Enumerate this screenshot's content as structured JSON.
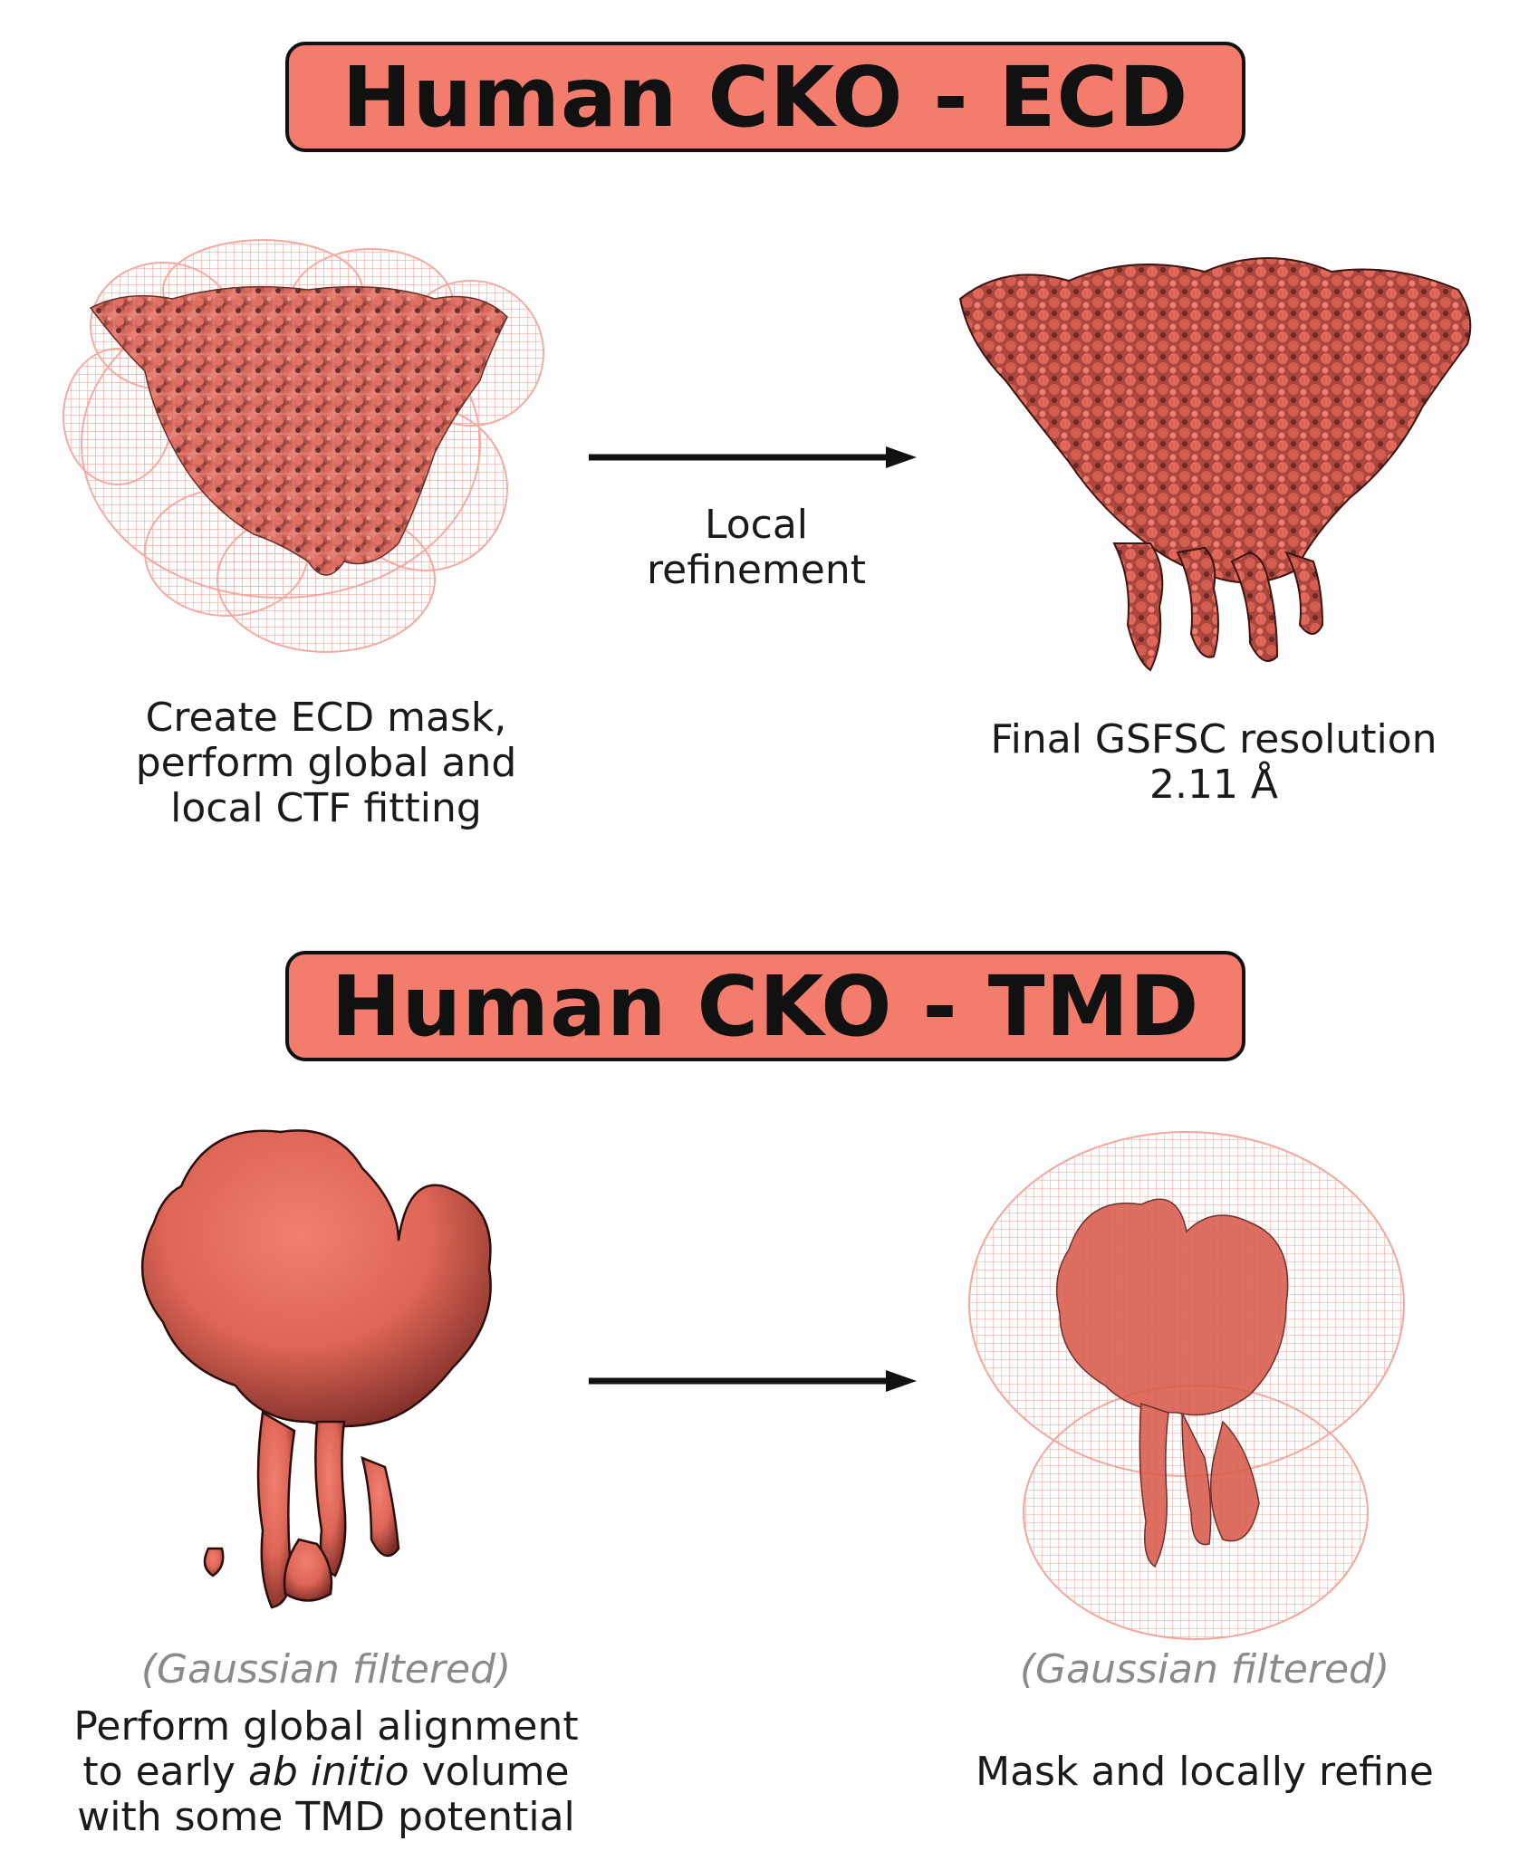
{
  "ecd": {
    "title": "Human CKO - ECD",
    "left_caption": [
      "Create ECD mask,",
      "perform global and",
      "local CTF fitting"
    ],
    "arrow_label": [
      "Local",
      "refinement"
    ],
    "right_caption": [
      "Final GSFSC resolution",
      "2.11 Å"
    ]
  },
  "tmd": {
    "title": "Human CKO - TMD",
    "left_filter_note": "(Gaussian filtered)",
    "left_caption": {
      "line1": "Perform global alignment",
      "line2_pre": "to early ",
      "line2_italic": "ab initio",
      "line2_post": " volume",
      "line3": "with some TMD potential"
    },
    "right_filter_note": "(Gaussian filtered)",
    "right_caption": "Mask and locally refine"
  },
  "colors": {
    "banner": "#f47c6c",
    "density": "#e0675a",
    "density_dark": "#8e3a33",
    "mesh": "#f5a298",
    "text": "#1a1a1a",
    "muted": "#8a8a8a"
  }
}
